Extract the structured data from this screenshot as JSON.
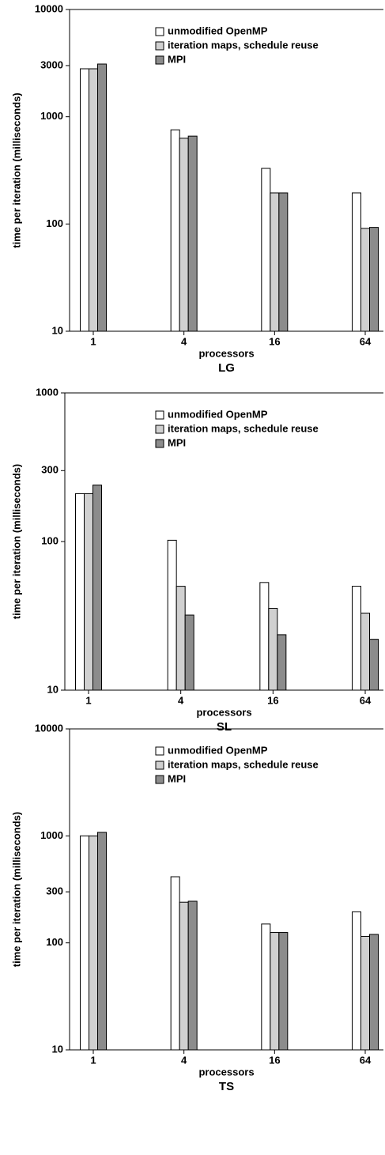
{
  "chart_data": [
    {
      "type": "bar",
      "title": "LG",
      "x_label": "processors",
      "y_label": "time per iteration (milliseconds)",
      "log_scale": true,
      "categories": [
        "1",
        "4",
        "16",
        "64"
      ],
      "ylim": [
        10,
        10000
      ],
      "yticks": [
        10,
        100,
        1000,
        3000,
        10000
      ],
      "series": [
        {
          "name": "unmodified OpenMP",
          "color": "#ffffff",
          "values": [
            2800,
            755,
            330,
            195
          ]
        },
        {
          "name": "iteration maps, schedule reuse",
          "color": "#d0d0d0",
          "values": [
            2800,
            630,
            195,
            91
          ]
        },
        {
          "name": "MPI",
          "color": "#8c8c8c",
          "values": [
            3100,
            660,
            195,
            93
          ]
        }
      ]
    },
    {
      "type": "bar",
      "title": "SL",
      "x_label": "processors",
      "y_label": "time per iteration (milliseconds)",
      "log_scale": true,
      "categories": [
        "1",
        "4",
        "16",
        "64"
      ],
      "ylim": [
        10,
        1000
      ],
      "yticks": [
        10,
        100,
        300,
        1000
      ],
      "series": [
        {
          "name": "unmodified OpenMP",
          "color": "#ffffff",
          "values": [
            210,
            102,
            53,
            50
          ]
        },
        {
          "name": "iteration maps, schedule reuse",
          "color": "#d0d0d0",
          "values": [
            210,
            50,
            35.5,
            33
          ]
        },
        {
          "name": "MPI",
          "color": "#8c8c8c",
          "values": [
            240,
            32,
            23.6,
            22
          ]
        }
      ]
    },
    {
      "type": "bar",
      "title": "TS",
      "x_label": "processors",
      "y_label": "time per iteration (milliseconds)",
      "log_scale": true,
      "categories": [
        "1",
        "4",
        "16",
        "64"
      ],
      "ylim": [
        10,
        10000
      ],
      "yticks": [
        10,
        100,
        300,
        1000,
        10000
      ],
      "series": [
        {
          "name": "unmodified OpenMP",
          "color": "#ffffff",
          "values": [
            1000,
            415,
            150,
            195
          ]
        },
        {
          "name": "iteration maps, schedule reuse",
          "color": "#d0d0d0",
          "values": [
            1000,
            240,
            125,
            115
          ]
        },
        {
          "name": "MPI",
          "color": "#8c8c8c",
          "values": [
            1080,
            245,
            125,
            120
          ]
        }
      ]
    }
  ]
}
